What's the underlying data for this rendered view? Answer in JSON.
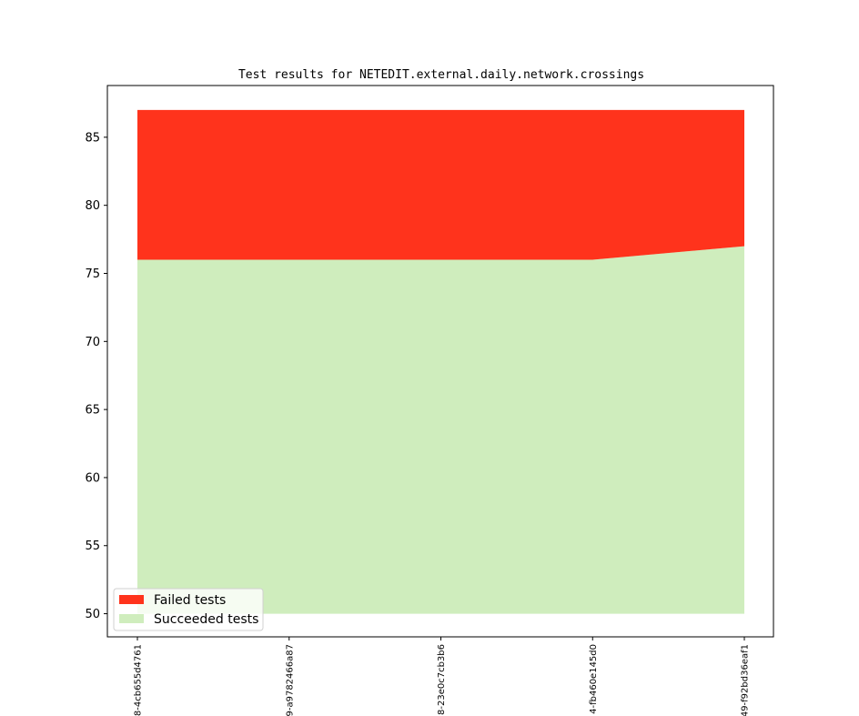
{
  "chart_data": {
    "type": "area",
    "title": "Test results for NETEDIT.external.daily.network.crossings",
    "xlabel": "",
    "ylabel": "",
    "categories": [
      "8-4cb655d4761",
      "9-a9782466a87",
      "8-23e0c7cb3b6",
      "4-fb460e145d0",
      "49-f92bd36eaf1"
    ],
    "ylim": [
      48.3,
      88.8
    ],
    "yticks": [
      50,
      55,
      60,
      65,
      70,
      75,
      80,
      85
    ],
    "baseline": 50,
    "series": [
      {
        "name": "Succeeded tests",
        "values": [
          76,
          76,
          76,
          76,
          77
        ],
        "color": "#cfedbd"
      },
      {
        "name": "Failed tests",
        "values": [
          11,
          11,
          11,
          11,
          10
        ],
        "color": "#ff331c"
      }
    ],
    "legend": {
      "position": "lower-left",
      "order": [
        "Failed tests",
        "Succeeded tests"
      ]
    },
    "grid": false
  }
}
